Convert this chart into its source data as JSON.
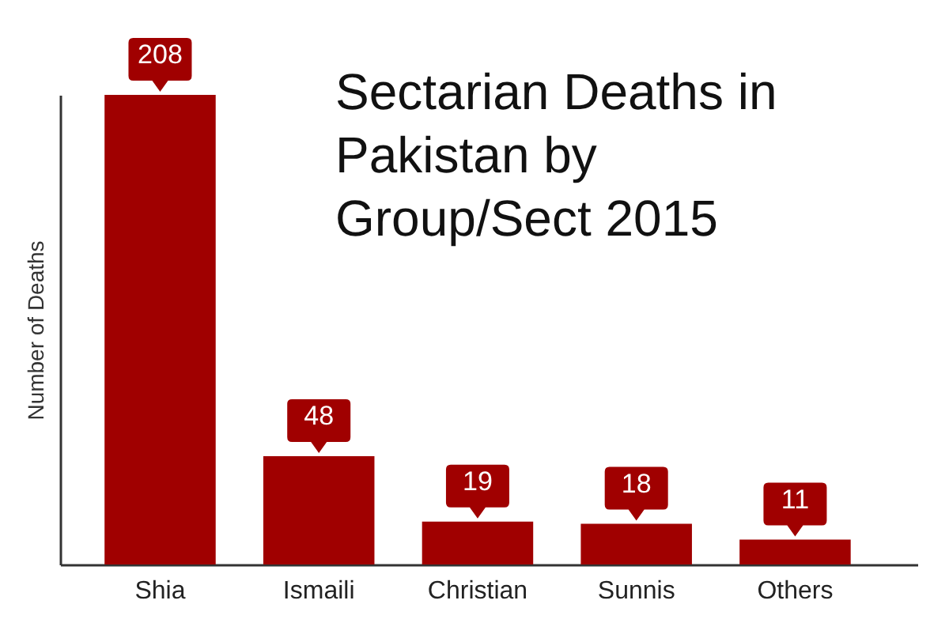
{
  "chart_data": {
    "type": "bar",
    "title": "Sectarian Deaths in\nPakistan by\nGroup/Sect 2015",
    "ylabel": "Number of Deaths",
    "categories": [
      "Shia",
      "Ismaili",
      "Christian",
      "Sunnis",
      "Others"
    ],
    "values": [
      208,
      48,
      19,
      18,
      11
    ],
    "color": "#a00000",
    "data_labels": true,
    "grid": false
  }
}
